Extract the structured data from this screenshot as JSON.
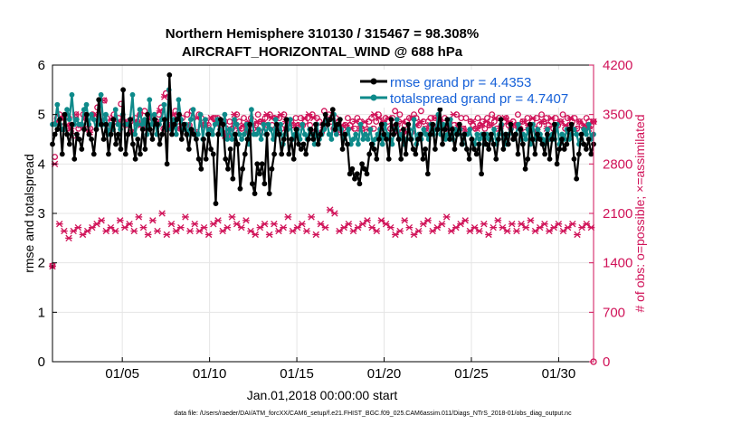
{
  "chart_data": {
    "type": "line",
    "title_line1": "Northern Hemisphere 310130 / 315467 = 98.308%",
    "title_line2": "AIRCRAFT_HORIZONTAL_WIND @ 688 hPa",
    "xlabel": "Jan.01,2018 00:00:00 start",
    "ylabel": "rmse and totalspread",
    "y2label": "# of obs: o=possible; ×=assimilated",
    "xlim": [
      1,
      32
    ],
    "ylim": [
      0,
      6
    ],
    "y2lim": [
      0,
      4200
    ],
    "x_ticks": [
      5,
      10,
      15,
      20,
      25,
      30
    ],
    "x_tick_labels": [
      "01/05",
      "01/10",
      "01/15",
      "01/20",
      "01/25",
      "01/30"
    ],
    "y_ticks": [
      "0",
      "1",
      "2",
      "3",
      "4",
      "5",
      "6"
    ],
    "y2_ticks": [
      "0",
      "700",
      "1400",
      "2100",
      "2800",
      "3500",
      "4200"
    ],
    "colors": {
      "rmse": "#000000",
      "spread": "#0e8a8a",
      "obs": "#d01258",
      "legend_text": "#1560d8"
    },
    "series": [
      {
        "name": "rmse grand pr = 4.4353",
        "values": [
          4.4,
          4.6,
          4.7,
          4.9,
          4.2,
          5.0,
          4.6,
          4.4,
          4.8,
          4.1,
          4.6,
          4.5,
          4.3,
          4.7,
          5.0,
          4.6,
          4.5,
          4.2,
          4.7,
          5.3,
          4.8,
          4.5,
          4.8,
          4.2,
          4.6,
          4.9,
          4.4,
          4.6,
          4.3,
          5.5,
          4.2,
          4.6,
          4.9,
          4.4,
          4.1,
          4.5,
          4.2,
          4.7,
          4.3,
          5.0,
          4.7,
          4.5,
          4.9,
          4.8,
          4.4,
          4.6,
          4.9,
          4.0,
          5.8,
          4.6,
          4.8,
          4.9,
          5.0,
          4.5,
          4.8,
          4.6,
          4.3,
          4.7,
          4.6,
          4.5,
          4.1,
          3.9,
          4.5,
          4.1,
          4.6,
          4.3,
          4.2,
          3.2,
          4.6,
          4.9,
          4.8,
          4.1,
          3.9,
          4.3,
          3.7,
          4.6,
          4.4,
          3.5,
          3.9,
          4.2,
          4.5,
          4.8,
          3.6,
          3.4,
          4.0,
          3.8,
          4.0,
          3.6,
          4.6,
          3.4,
          3.9,
          4.2,
          4.8,
          4.6,
          4.2,
          4.5,
          4.9,
          4.2,
          4.5,
          4.1,
          4.7,
          4.4,
          4.3,
          4.4,
          4.2,
          4.5,
          4.7,
          4.5,
          4.8,
          4.4,
          4.6,
          4.8,
          5.0,
          4.8,
          4.9,
          5.1,
          4.7,
          4.8,
          4.9,
          4.3,
          4.6,
          4.4,
          3.8,
          3.9,
          3.7,
          3.8,
          3.6,
          4.0,
          3.9,
          3.8,
          4.2,
          4.4,
          4.3,
          4.1,
          4.5,
          4.8,
          4.6,
          4.5,
          4.1,
          4.9,
          4.6,
          4.8,
          4.5,
          4.1,
          4.7,
          4.2,
          4.8,
          4.5,
          4.3,
          4.2,
          4.5,
          4.6,
          4.1,
          4.3,
          3.8,
          4.6,
          4.8,
          4.3,
          4.7,
          5.1,
          4.4,
          4.7,
          4.9,
          4.5,
          4.7,
          4.3,
          4.6,
          4.8,
          4.4,
          4.6,
          4.3,
          4.1,
          4.5,
          4.3,
          4.2,
          4.4,
          3.8,
          4.6,
          4.4,
          4.3,
          4.6,
          4.4,
          4.1,
          4.5,
          4.9,
          4.3,
          4.6,
          4.4,
          4.8,
          4.5,
          4.6,
          4.2,
          4.7,
          4.4,
          3.9,
          4.1,
          4.8,
          4.5,
          4.2,
          4.6,
          4.5,
          4.4,
          4.2,
          4.6,
          4.1,
          4.5,
          4.8,
          4.0,
          4.3,
          4.5,
          4.3,
          4.4,
          4.7,
          4.8,
          4.1,
          3.7,
          4.2,
          4.6,
          4.4,
          4.3,
          4.5,
          4.2,
          4.4
        ]
      },
      {
        "name": "totalspread grand pr = 4.7407",
        "values": [
          4.8,
          4.8,
          5.2,
          4.8,
          4.7,
          4.7,
          5.1,
          4.9,
          5.4,
          4.8,
          4.9,
          4.8,
          4.8,
          5.1,
          5.2,
          4.8,
          5.0,
          4.9,
          4.7,
          4.8,
          5.4,
          4.8,
          5.0,
          4.6,
          4.8,
          4.7,
          5.1,
          4.8,
          4.7,
          5.0,
          4.8,
          4.8,
          4.9,
          5.4,
          4.6,
          4.8,
          5.1,
          4.8,
          4.9,
          4.6,
          5.3,
          4.8,
          5.0,
          4.6,
          4.8,
          4.9,
          5.2,
          4.7,
          5.5,
          4.7,
          4.9,
          4.6,
          5.3,
          4.9,
          4.7,
          4.8,
          4.6,
          4.9,
          5.1,
          4.6,
          4.6,
          5.0,
          4.5,
          4.9,
          4.6,
          4.7,
          4.6,
          4.8,
          4.9,
          4.7,
          4.6,
          5.0,
          4.5,
          4.7,
          4.5,
          4.9,
          4.8,
          4.6,
          4.5,
          4.6,
          4.8,
          4.4,
          5.1,
          4.6,
          4.6,
          4.7,
          4.5,
          4.8,
          4.6,
          4.8,
          4.7,
          4.5,
          4.9,
          4.6,
          4.8,
          4.4,
          4.6,
          4.7,
          4.9,
          4.5,
          4.6,
          4.7,
          4.5,
          4.8,
          4.6,
          4.5,
          4.7,
          4.6,
          4.4,
          4.8,
          4.5,
          4.6,
          4.7,
          4.9,
          4.6,
          4.5,
          5.0,
          4.6,
          4.8,
          4.7,
          4.5,
          4.6,
          4.7,
          4.4,
          4.5,
          4.6,
          4.4,
          4.8,
          4.5,
          4.6,
          4.5,
          4.7,
          4.4,
          4.5,
          4.6,
          4.7,
          4.4,
          4.8,
          4.6,
          4.5,
          4.4,
          4.7,
          4.9,
          4.5,
          4.6,
          4.4,
          4.5,
          4.7,
          4.5,
          4.9,
          4.4,
          4.6,
          4.5,
          4.7,
          4.6,
          4.5,
          4.8,
          4.6,
          4.7,
          5.0,
          4.6,
          4.8,
          4.5,
          4.6,
          4.9,
          4.5,
          4.7,
          4.6,
          4.7,
          4.4,
          4.6,
          4.6,
          4.7,
          4.5,
          4.4,
          4.6,
          4.5,
          4.6,
          4.4,
          4.6,
          4.5,
          4.5,
          4.7,
          4.4,
          4.6,
          4.8,
          4.5,
          4.4,
          4.6,
          4.7,
          4.5,
          4.6,
          4.8,
          4.5,
          4.6,
          4.5,
          4.7,
          4.4,
          4.8,
          4.5,
          4.7,
          4.6,
          4.5,
          4.4,
          4.7,
          4.5,
          4.6,
          4.5,
          4.8,
          4.4,
          4.6,
          4.5,
          4.7,
          4.5,
          4.6,
          4.7,
          4.6,
          4.4,
          4.5,
          4.7,
          4.6,
          4.8,
          4.5,
          4.6
        ]
      }
    ],
    "obs_possible": [
      1360,
      2900,
      3450,
      3500,
      3400,
      3450,
      3300,
      3450,
      3350,
      3200,
      3500,
      3300,
      3350,
      3500,
      3450,
      3300,
      3300,
      3500,
      3450,
      3600,
      3400,
      3400,
      3700,
      3450,
      3300,
      3400,
      3500,
      3400,
      3450,
      3650,
      3400,
      3350,
      3400,
      3400,
      3250,
      3450,
      3400,
      3500,
      3350,
      3550,
      3300,
      3400,
      3450,
      3400,
      3400,
      3500,
      3600,
      3300,
      3800,
      3300,
      3350,
      3450,
      3550,
      3400,
      3300,
      3450,
      3350,
      3500,
      3350,
      3550,
      3250,
      3250,
      3500,
      3450,
      3350,
      3400,
      3350,
      3250,
      3450,
      3450,
      3450,
      3350,
      3250,
      3400,
      3200,
      3400,
      3300,
      3350,
      3500,
      3400,
      3300,
      3450,
      3350,
      3250,
      3450,
      3300,
      3350,
      3500,
      3400,
      3250,
      3450,
      3350,
      3500,
      3350,
      3450,
      3300,
      3450,
      3300,
      3500,
      3300,
      3400,
      3400,
      3350,
      3450,
      3350,
      3450,
      3350,
      3400,
      3450,
      3350,
      3500,
      3250,
      3450,
      3400,
      3250,
      3550,
      3350,
      3500,
      3400,
      3300,
      3450,
      3400,
      3250,
      3300,
      3350,
      3450,
      3350,
      3400,
      3300,
      3450,
      3400,
      3300,
      3350,
      3250,
      3400,
      3450,
      3300,
      3400,
      3500,
      3300,
      3650,
      3450,
      3400,
      3300,
      3450,
      3550,
      3350,
      3500,
      3250,
      3350,
      3400,
      3450,
      3250,
      3500,
      3450,
      3350,
      3550,
      3400,
      3300,
      3400,
      3450,
      3350,
      3450,
      3300,
      3400,
      3350,
      3450,
      3300,
      3400,
      3300,
      3350,
      3500,
      3350,
      3450,
      3300,
      3450,
      3250,
      3400,
      3350,
      3300,
      3450,
      3350,
      3400,
      3300,
      3450,
      3350,
      3500,
      3400,
      3300,
      3450,
      3350,
      3400,
      3450,
      3350,
      3300,
      3400,
      3350,
      3500,
      3300,
      3400,
      3250,
      3450,
      3350,
      3400,
      3300,
      3450,
      3350,
      3500,
      3400,
      3450,
      3350,
      3400,
      3300,
      3450,
      3350,
      3400,
      3500,
      3300,
      3450,
      3350,
      3400,
      3450,
      3300,
      3400,
      3350,
      3300,
      3450,
      3400,
      3350,
      3400
    ],
    "obs_assimilated": [
      1350,
      2800,
      3400,
      1950,
      3450,
      1850,
      3350,
      1750,
      3300,
      1850,
      3500,
      1900,
      3350,
      1800,
      3450,
      1850,
      3250,
      1900,
      3500,
      1950,
      3400,
      2000,
      3700,
      1850,
      3300,
      1900,
      3450,
      1850,
      3400,
      2000,
      3350,
      1900,
      3400,
      1950,
      3250,
      1850,
      3400,
      2050,
      3350,
      1900,
      3300,
      1800,
      3450,
      2000,
      3400,
      1850,
      3550,
      2100,
      3750,
      1800,
      3350,
      1950,
      3500,
      1850,
      3300,
      1900,
      3350,
      2050,
      3350,
      1850,
      3250,
      1950,
      3450,
      1850,
      3350,
      1900,
      3350,
      1800,
      3450,
      1950,
      3400,
      2000,
      3250,
      1850,
      3200,
      1900,
      3300,
      2050,
      3500,
      1950,
      3300,
      1900,
      3350,
      2000,
      3400,
      1850,
      3350,
      1800,
      3400,
      1900,
      3400,
      1950,
      3500,
      1800,
      3450,
      1950,
      3450,
      1850,
      3500,
      1900,
      3400,
      2050,
      3350,
      1850,
      3350,
      1900,
      3350,
      1950,
      3450,
      1850,
      3500,
      2050,
      3450,
      1800,
      3250,
      1950,
      3350,
      1900,
      3400,
      2150,
      3450,
      2100,
      3250,
      1850,
      3350,
      1900,
      3350,
      1950,
      3300,
      1850,
      3400,
      1900,
      3300,
      1950,
      3400,
      2000,
      3300,
      1900,
      3500,
      1850,
      3450,
      2000,
      3400,
      1950,
      3450,
      1900,
      3350,
      1800,
      3250,
      1850,
      3400,
      2000,
      3250,
      1900,
      3450,
      1800,
      3350,
      1850,
      3400,
      1950,
      3300,
      2000,
      3350,
      1850,
      3450,
      1900,
      3400,
      1950,
      3300,
      2050,
      3300,
      1850,
      3500,
      1900,
      3350,
      1950,
      3300,
      2000,
      3250,
      1850,
      3400,
      1900,
      3300,
      1850,
      3350,
      1950,
      3400,
      1800,
      3350,
      1900,
      3450,
      2000,
      3300,
      1900,
      3450,
      1850,
      3400,
      1950,
      3350,
      1850,
      3300,
      1950,
      3400,
      1900,
      3350,
      2000,
      3450,
      1850,
      3250,
      1900,
      3400,
      1950,
      3300,
      1850,
      3450,
      1900,
      3350,
      1950,
      3400,
      1850,
      3350,
      1900,
      3450,
      1950,
      3300,
      1800,
      3400,
      1900,
      3350,
      1950,
      3300,
      1900,
      3400
    ]
  },
  "footer": "data file: /Users/raeder/DAI/ATM_forcXX/CAM6_setup/f.e21.FHIST_BGC.f09_025.CAM6assim.011/Diags_NTrS_2018-01/obs_diag_output.nc"
}
